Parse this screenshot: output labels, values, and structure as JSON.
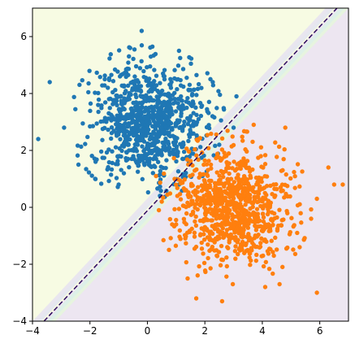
{
  "chart_data": {
    "type": "scatter",
    "title": "",
    "xlabel": "",
    "ylabel": "",
    "xlim": [
      -4,
      7
    ],
    "ylim": [
      -4,
      7
    ],
    "x_ticks": [
      -4,
      -2,
      0,
      2,
      4,
      6
    ],
    "y_ticks": [
      -4,
      -2,
      0,
      2,
      4,
      6
    ],
    "x_tick_labels": [
      "−4",
      "−2",
      "0",
      "2",
      "4",
      "6"
    ],
    "y_tick_labels": [
      "−4",
      "−2",
      "0",
      "2",
      "4",
      "6"
    ],
    "grid": false,
    "legend": "none",
    "decision_boundary": {
      "style": "dashed",
      "color": "#2c0a5e",
      "points": [
        [
          -3.6,
          -4.0
        ],
        [
          6.6,
          7.0
        ]
      ]
    },
    "regions": [
      {
        "side": "upper-left",
        "color": "#f7fbe3"
      },
      {
        "side": "lower-right",
        "color": "#ede6f1"
      }
    ],
    "transition_bands": [
      {
        "offset": -0.25,
        "color": "#e6f5dd"
      },
      {
        "offset": -0.1,
        "color": "#dbf1e8"
      },
      {
        "offset": 0.1,
        "color": "#e2e6f0"
      },
      {
        "offset": 0.25,
        "color": "#e7e3f0"
      }
    ],
    "series": [
      {
        "color": "#1f77b4",
        "center": [
          0.0,
          3.0
        ],
        "std": 1.0,
        "count": 900,
        "extremes": [
          [
            -3.4,
            4.4
          ],
          [
            -3.8,
            2.4
          ],
          [
            -0.2,
            6.2
          ],
          [
            3.1,
            3.9
          ],
          [
            -2.9,
            2.8
          ],
          [
            0.0,
            1.6
          ],
          [
            2.5,
            2.2
          ],
          [
            -2.4,
            1.5
          ],
          [
            -1.0,
            0.8
          ],
          [
            1.1,
            5.5
          ],
          [
            3.0,
            2.8
          ],
          [
            -0.6,
            5.6
          ]
        ]
      },
      {
        "color": "#ff7f0e",
        "center": [
          3.0,
          0.0
        ],
        "std": 1.0,
        "count": 900,
        "extremes": [
          [
            6.3,
            1.4
          ],
          [
            6.5,
            0.8
          ],
          [
            6.8,
            0.8
          ],
          [
            5.9,
            -3.0
          ],
          [
            2.6,
            -3.3
          ],
          [
            1.7,
            -3.2
          ],
          [
            5.3,
            -1.4
          ],
          [
            5.7,
            -0.4
          ],
          [
            3.7,
            2.9
          ],
          [
            4.8,
            2.8
          ],
          [
            1.4,
            -2.5
          ],
          [
            0.4,
            -0.1
          ],
          [
            4.1,
            -2.8
          ],
          [
            0.3,
            1.1
          ],
          [
            1.0,
            -0.6
          ],
          [
            5.9,
            0.3
          ],
          [
            4.6,
            -2.7
          ],
          [
            0.5,
            0.2
          ]
        ]
      }
    ]
  }
}
